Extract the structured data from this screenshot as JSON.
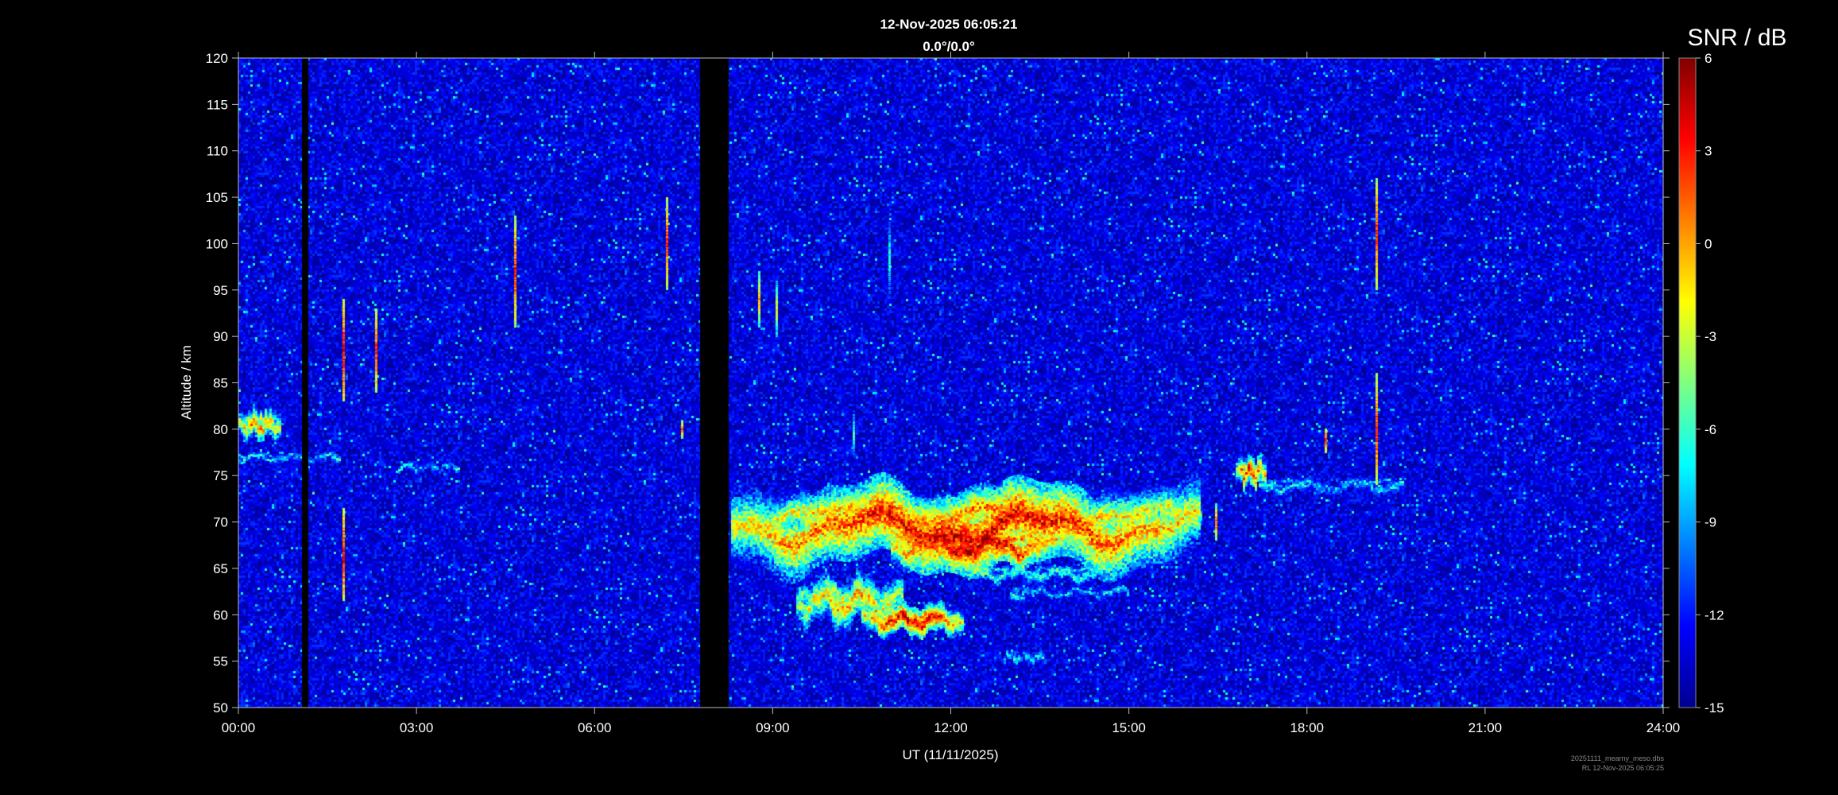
{
  "chart_data": {
    "type": "heatmap",
    "title": "12-Nov-2025 06:05:21",
    "subtitle": "0.0°/0.0°",
    "xlabel": "UT (11/11/2025)",
    "ylabel": "Altitude / km",
    "xlim": [
      0,
      24
    ],
    "ylim": [
      50,
      120
    ],
    "x_ticks": [
      {
        "value": 0,
        "label": "00:00"
      },
      {
        "value": 3,
        "label": "03:00"
      },
      {
        "value": 6,
        "label": "06:00"
      },
      {
        "value": 9,
        "label": "09:00"
      },
      {
        "value": 12,
        "label": "12:00"
      },
      {
        "value": 15,
        "label": "15:00"
      },
      {
        "value": 18,
        "label": "18:00"
      },
      {
        "value": 21,
        "label": "21:00"
      },
      {
        "value": 24,
        "label": "24:00"
      }
    ],
    "y_ticks": [
      {
        "value": 50,
        "label": "50"
      },
      {
        "value": 55,
        "label": "55"
      },
      {
        "value": 60,
        "label": "60"
      },
      {
        "value": 65,
        "label": "65"
      },
      {
        "value": 70,
        "label": "70"
      },
      {
        "value": 75,
        "label": "75"
      },
      {
        "value": 80,
        "label": "80"
      },
      {
        "value": 85,
        "label": "85"
      },
      {
        "value": 90,
        "label": "90"
      },
      {
        "value": 95,
        "label": "95"
      },
      {
        "value": 100,
        "label": "100"
      },
      {
        "value": 105,
        "label": "105"
      },
      {
        "value": 110,
        "label": "110"
      },
      {
        "value": 115,
        "label": "115"
      },
      {
        "value": 120,
        "label": "120"
      }
    ],
    "colorbar": {
      "label": "SNR / dB",
      "range": [
        -15,
        6
      ],
      "colormap": "jet",
      "ticks": [
        {
          "value": 6,
          "label": "6"
        },
        {
          "value": 3,
          "label": "3"
        },
        {
          "value": 0,
          "label": "0"
        },
        {
          "value": -3,
          "label": "-3"
        },
        {
          "value": -6,
          "label": "-6"
        },
        {
          "value": -9,
          "label": "-9"
        },
        {
          "value": -12,
          "label": "-12"
        },
        {
          "value": -15,
          "label": "-15"
        }
      ]
    },
    "background_snr": -13,
    "data_gaps": [
      {
        "start": 1.08,
        "end": 1.17
      },
      {
        "start": 7.78,
        "end": 8.25
      }
    ],
    "echo_layers": [
      {
        "t0": 8.3,
        "t1": 16.2,
        "alt": 69.5,
        "thick": 4,
        "peak_snr": 4
      },
      {
        "t0": 11.0,
        "t1": 13.8,
        "alt": 67.5,
        "thick": 2,
        "peak_snr": 5
      },
      {
        "t0": 9.4,
        "t1": 11.2,
        "alt": 61.5,
        "thick": 2.5,
        "peak_snr": 0
      },
      {
        "t0": 10.5,
        "t1": 12.2,
        "alt": 59.5,
        "thick": 1.5,
        "peak_snr": 4
      },
      {
        "t0": 12.5,
        "t1": 14.5,
        "alt": 64.5,
        "thick": 1.2,
        "peak_snr": -6
      },
      {
        "t0": 13.0,
        "t1": 15.0,
        "alt": 62.5,
        "thick": 1,
        "peak_snr": -9
      },
      {
        "t0": 12.9,
        "t1": 13.6,
        "alt": 55.5,
        "thick": 1,
        "peak_snr": -8
      },
      {
        "t0": 0.0,
        "t1": 0.7,
        "alt": 80.5,
        "thick": 1.5,
        "peak_snr": 1
      },
      {
        "t0": 0.0,
        "t1": 1.7,
        "alt": 77.0,
        "thick": 0.8,
        "peak_snr": -8
      },
      {
        "t0": 2.7,
        "t1": 3.7,
        "alt": 76.0,
        "thick": 0.8,
        "peak_snr": -9
      },
      {
        "t0": 16.8,
        "t1": 17.3,
        "alt": 75.5,
        "thick": 1.5,
        "peak_snr": 3
      },
      {
        "t0": 15.2,
        "t1": 16.2,
        "alt": 71.0,
        "thick": 1.5,
        "peak_snr": -4
      },
      {
        "t0": 17.2,
        "t1": 19.6,
        "alt": 74.0,
        "thick": 1.2,
        "peak_snr": -8
      }
    ],
    "meteor_streaks": [
      {
        "t": 1.75,
        "alt0": 83.0,
        "alt1": 94.0,
        "peak_snr": 4
      },
      {
        "t": 1.75,
        "alt0": 61.5,
        "alt1": 71.5,
        "peak_snr": 4
      },
      {
        "t": 2.3,
        "alt0": 84.0,
        "alt1": 93.0,
        "peak_snr": 3
      },
      {
        "t": 4.65,
        "alt0": 91.0,
        "alt1": 103.0,
        "peak_snr": 3
      },
      {
        "t": 7.2,
        "alt0": 95.0,
        "alt1": 105.0,
        "peak_snr": 3
      },
      {
        "t": 7.45,
        "alt0": 79.0,
        "alt1": 81.0,
        "peak_snr": 2
      },
      {
        "t": 8.75,
        "alt0": 91.0,
        "alt1": 97.0,
        "peak_snr": 0
      },
      {
        "t": 9.05,
        "alt0": 90.0,
        "alt1": 96.0,
        "peak_snr": -2
      },
      {
        "t": 10.35,
        "alt0": 77.0,
        "alt1": 82.0,
        "peak_snr": -5
      },
      {
        "t": 10.95,
        "alt0": 94.0,
        "alt1": 103.0,
        "peak_snr": -6
      },
      {
        "t": 16.45,
        "alt0": 68.0,
        "alt1": 72.0,
        "peak_snr": 2
      },
      {
        "t": 18.3,
        "alt0": 77.5,
        "alt1": 80.0,
        "peak_snr": 3
      },
      {
        "t": 19.15,
        "alt0": 74.0,
        "alt1": 86.0,
        "peak_snr": 3
      },
      {
        "t": 19.15,
        "alt0": 95.0,
        "alt1": 107.0,
        "peak_snr": 3
      }
    ]
  },
  "footer": {
    "line1": "20251111_mearny_meso.dbs",
    "line2": "RL 12-Nov-2025 06:05:25"
  }
}
